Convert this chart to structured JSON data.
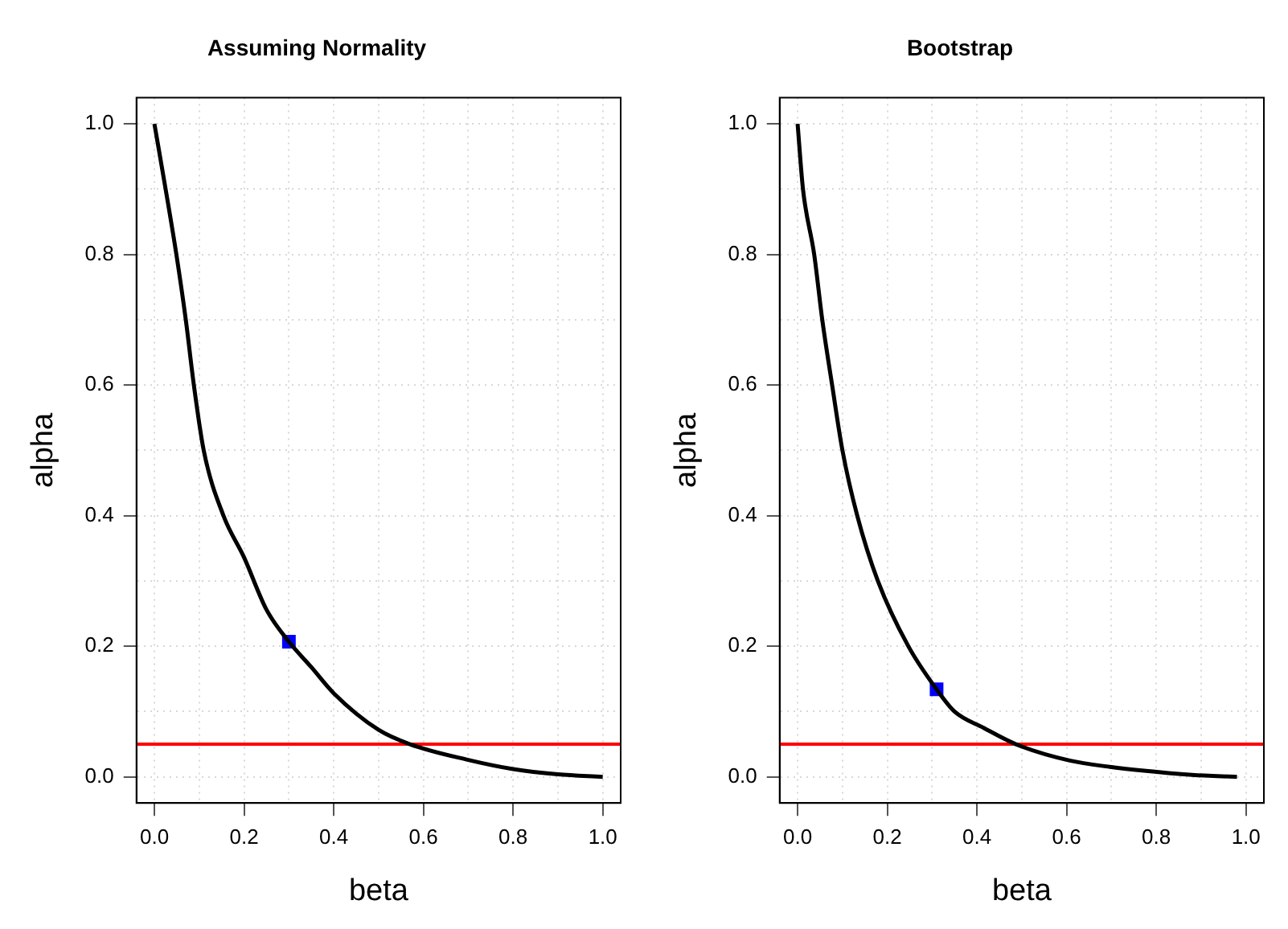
{
  "chart_data": [
    {
      "type": "line",
      "title": "Assuming Normality",
      "xlabel": "beta",
      "ylabel": "alpha",
      "xlim": [
        -0.04,
        1.04
      ],
      "ylim": [
        -0.04,
        1.04
      ],
      "xticks": [
        {
          "value": 0,
          "label": "0.0"
        },
        {
          "value": 0.1,
          "label": null
        },
        0.2,
        {
          "value": 0.3,
          "label": null
        },
        0.4,
        {
          "value": 0.5,
          "label": null
        },
        0.6,
        {
          "value": 0.7,
          "label": null
        },
        0.8,
        {
          "value": 0.9,
          "label": null
        },
        {
          "value": 1,
          "label": "1.0"
        }
      ],
      "yticks": [
        {
          "value": 0,
          "label": "0.0"
        },
        {
          "value": 0.1,
          "label": null
        },
        0.2,
        {
          "value": 0.3,
          "label": null
        },
        0.4,
        {
          "value": 0.5,
          "label": null
        },
        0.6,
        {
          "value": 0.7,
          "label": null
        },
        0.8,
        {
          "value": 0.9,
          "label": null
        },
        {
          "value": 1,
          "label": "1.0"
        }
      ],
      "grid": true,
      "legend": false,
      "series": [
        {
          "type": "line",
          "color": "#000000",
          "marker": "none",
          "line_style": "solid",
          "x": [
            0,
            0.025,
            0.049,
            0.07,
            0.088,
            0.11,
            0.154,
            0.2,
            0.25,
            0.3,
            0.35,
            0.4,
            0.5,
            0.57,
            0.7,
            0.8,
            0.9,
            1
          ],
          "values": [
            1,
            0.9,
            0.8,
            0.7,
            0.6,
            0.5,
            0.4,
            0.336,
            0.256,
            0.207,
            0.168,
            0.128,
            0.072,
            0.05,
            0.026,
            0.012,
            0.004,
            0
          ]
        },
        {
          "type": "scatter",
          "color": "#0000ff",
          "marker": "square",
          "x": [
            0.3
          ],
          "values": [
            0.207
          ]
        }
      ],
      "ref_lines": [
        {
          "axis": "y",
          "value": 0.05,
          "color": "#ff0000",
          "line_style": "solid"
        }
      ]
    },
    {
      "type": "line",
      "title": "Bootstrap",
      "xlabel": "beta",
      "ylabel": "alpha",
      "xlim": [
        -0.04,
        1.04
      ],
      "ylim": [
        -0.04,
        1.04
      ],
      "xticks": [
        {
          "value": 0,
          "label": "0.0"
        },
        {
          "value": 0.1,
          "label": null
        },
        0.2,
        {
          "value": 0.3,
          "label": null
        },
        0.4,
        {
          "value": 0.5,
          "label": null
        },
        0.6,
        {
          "value": 0.7,
          "label": null
        },
        0.8,
        {
          "value": 0.9,
          "label": null
        },
        {
          "value": 1,
          "label": "1.0"
        }
      ],
      "yticks": [
        {
          "value": 0,
          "label": "0.0"
        },
        {
          "value": 0.1,
          "label": null
        },
        0.2,
        {
          "value": 0.3,
          "label": null
        },
        0.4,
        {
          "value": 0.5,
          "label": null
        },
        0.6,
        {
          "value": 0.7,
          "label": null
        },
        0.8,
        {
          "value": 0.9,
          "label": null
        },
        {
          "value": 1,
          "label": "1.0"
        }
      ],
      "grid": true,
      "legend": false,
      "series": [
        {
          "type": "line",
          "color": "#000000",
          "marker": "none",
          "line_style": "solid",
          "x": [
            0,
            0.012,
            0.037,
            0.055,
            0.077,
            0.1,
            0.133,
            0.179,
            0.247,
            0.31,
            0.35,
            0.415,
            0.487,
            0.607,
            0.7,
            0.763,
            0.88,
            0.98
          ],
          "values": [
            1,
            0.9,
            0.8,
            0.7,
            0.6,
            0.5,
            0.4,
            0.3,
            0.2,
            0.134,
            0.1,
            0.075,
            0.05,
            0.025,
            0.015,
            0.01,
            0.003,
            0
          ]
        },
        {
          "type": "scatter",
          "color": "#0000ff",
          "marker": "square",
          "x": [
            0.31
          ],
          "values": [
            0.134
          ]
        }
      ],
      "ref_lines": [
        {
          "axis": "y",
          "value": 0.05,
          "color": "#ff0000",
          "line_style": "solid"
        }
      ]
    }
  ]
}
